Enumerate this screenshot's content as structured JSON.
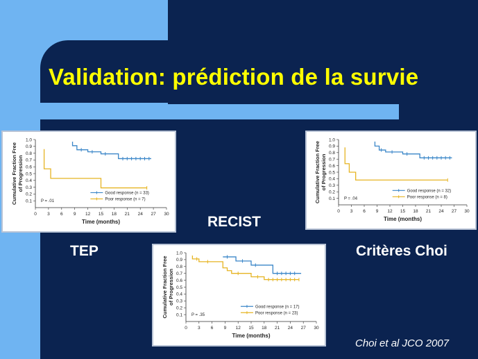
{
  "slide": {
    "title": "Validation: prédiction de la survie",
    "labels": {
      "tep": "TEP",
      "recist": "RECIST",
      "choi": "Critères Choi"
    },
    "citation": "Choi et al JCO 2007"
  },
  "colors": {
    "background": "#6fb4f2",
    "panel_bg": "#0b2350",
    "title": "#ffff00",
    "good": "#3a86c8",
    "poor": "#e6b422"
  },
  "chart_data": [
    {
      "id": "tep",
      "type": "line",
      "title": "",
      "xlabel": "Time (months)",
      "ylabel": "Cumulative Fraction Free of Progression",
      "xlim": [
        0,
        30
      ],
      "ylim": [
        0,
        1.0
      ],
      "xticks": [
        0,
        3,
        6,
        9,
        12,
        15,
        18,
        21,
        24,
        27,
        30
      ],
      "yticks": [
        0.1,
        0.2,
        0.3,
        0.4,
        0.5,
        0.6,
        0.7,
        0.8,
        0.9,
        1.0
      ],
      "p_value": "P = .01",
      "series": [
        {
          "name": "Good response (n = 33)",
          "color": "#3a86c8",
          "x": [
            8.5,
            8.5,
            9.5,
            9.5,
            12,
            12,
            15,
            15,
            19,
            19,
            26.5
          ],
          "y": [
            0.97,
            0.91,
            0.91,
            0.85,
            0.85,
            0.82,
            0.82,
            0.79,
            0.79,
            0.72,
            0.72
          ],
          "censor_x": [
            10.5,
            13,
            16,
            20,
            21,
            22,
            23,
            24,
            25,
            26
          ]
        },
        {
          "name": "Poor response (n = 7)",
          "color": "#e6b422",
          "x": [
            2,
            2,
            3.5,
            3.5,
            15,
            15,
            25.5
          ],
          "y": [
            0.86,
            0.57,
            0.57,
            0.43,
            0.43,
            0.29,
            0.29
          ],
          "censor_x": [
            25.5
          ]
        }
      ]
    },
    {
      "id": "choi",
      "type": "line",
      "title": "",
      "xlabel": "Time (months)",
      "ylabel": "Cumulative Fraction Free of Progression",
      "xlim": [
        0,
        30
      ],
      "ylim": [
        0,
        1.0
      ],
      "xticks": [
        0,
        3,
        6,
        9,
        12,
        15,
        18,
        21,
        24,
        27,
        30
      ],
      "yticks": [
        0.1,
        0.2,
        0.3,
        0.4,
        0.5,
        0.6,
        0.7,
        0.8,
        0.9,
        1.0
      ],
      "p_value": "P = .04",
      "series": [
        {
          "name": "Good response (n = 32)",
          "color": "#3a86c8",
          "x": [
            8.5,
            8.5,
            9.5,
            9.5,
            11,
            11,
            15,
            15,
            19,
            19,
            26.5
          ],
          "y": [
            0.97,
            0.9,
            0.9,
            0.84,
            0.84,
            0.81,
            0.81,
            0.78,
            0.78,
            0.72,
            0.72
          ],
          "censor_x": [
            10,
            12.5,
            16,
            20,
            21,
            22,
            23,
            24,
            25,
            26
          ]
        },
        {
          "name": "Poor response (n = 8)",
          "color": "#e6b422",
          "x": [
            1.5,
            1.5,
            2.5,
            2.5,
            4,
            4,
            15,
            15,
            25.5
          ],
          "y": [
            0.88,
            0.63,
            0.63,
            0.5,
            0.5,
            0.38,
            0.38,
            0.38,
            0.38
          ],
          "censor_x": [
            25.5
          ]
        }
      ]
    },
    {
      "id": "recist",
      "type": "line",
      "title": "",
      "xlabel": "Time (months)",
      "ylabel": "Cumulative Fraction Free of Progression",
      "xlim": [
        0,
        30
      ],
      "ylim": [
        0,
        1.0
      ],
      "xticks": [
        0,
        3,
        6,
        9,
        12,
        15,
        18,
        21,
        24,
        27,
        30
      ],
      "yticks": [
        0.1,
        0.2,
        0.3,
        0.4,
        0.5,
        0.6,
        0.7,
        0.8,
        0.9,
        1.0
      ],
      "p_value": "P = .35",
      "series": [
        {
          "name": "Good response (n = 17)",
          "color": "#3a86c8",
          "x": [
            8.5,
            8.5,
            11.5,
            11.5,
            15,
            15,
            20,
            20,
            26.5
          ],
          "y": [
            0.94,
            0.94,
            0.94,
            0.88,
            0.88,
            0.82,
            0.82,
            0.7,
            0.7
          ],
          "censor_x": [
            9.5,
            13,
            16,
            21,
            22,
            23,
            24,
            25
          ]
        },
        {
          "name": "Poor response (n = 23)",
          "color": "#e6b422",
          "x": [
            1.5,
            1.5,
            3,
            3,
            8.5,
            8.5,
            9.5,
            9.5,
            10.5,
            10.5,
            15,
            15,
            18,
            18,
            26
          ],
          "y": [
            0.96,
            0.91,
            0.91,
            0.87,
            0.87,
            0.78,
            0.78,
            0.74,
            0.74,
            0.7,
            0.7,
            0.65,
            0.65,
            0.61,
            0.61
          ],
          "censor_x": [
            2.5,
            5,
            12,
            16.5,
            19,
            20,
            21,
            22,
            23,
            24,
            25,
            26
          ]
        }
      ]
    }
  ]
}
